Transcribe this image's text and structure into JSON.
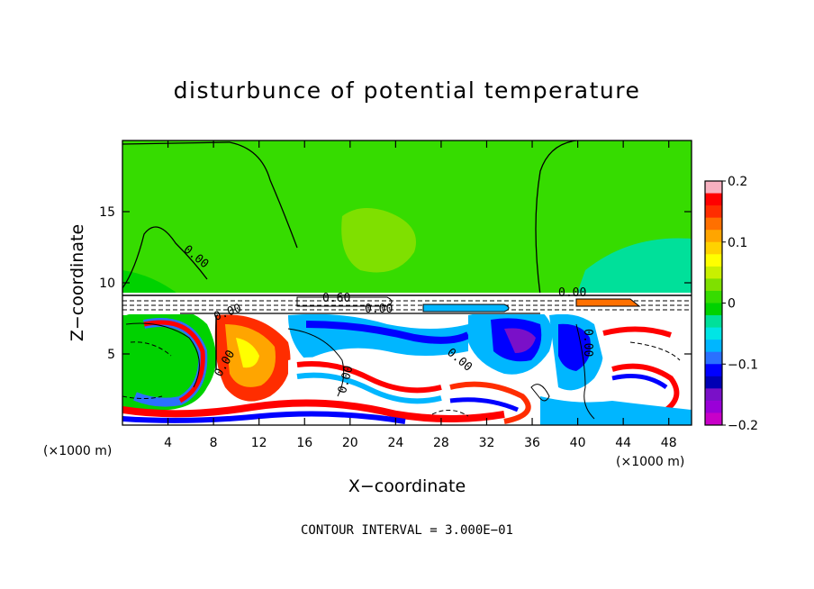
{
  "chart_data": {
    "type": "heatmap",
    "title": "disturbunce of potential temperature",
    "xlabel": "X−coordinate",
    "ylabel": "Z−coordinate",
    "xunit": "(×1000 m)",
    "xunit_right": "(×1000 m)",
    "xticks": [
      "4",
      "8",
      "12",
      "16",
      "20",
      "24",
      "28",
      "32",
      "36",
      "40",
      "44",
      "48"
    ],
    "xtick_values": [
      4,
      8,
      12,
      16,
      20,
      24,
      28,
      32,
      36,
      40,
      44,
      48
    ],
    "xlim": [
      0,
      50
    ],
    "yticks": [
      "5",
      "10",
      "15"
    ],
    "ytick_values": [
      5,
      10,
      15
    ],
    "ylim": [
      0,
      20
    ],
    "colorbar": {
      "ticks": [
        "0.2",
        "0.1",
        "0",
        "−0.1",
        "−0.2"
      ],
      "tick_values": [
        0.2,
        0.1,
        0,
        -0.1,
        -0.2
      ],
      "range": [
        -0.2,
        0.2
      ],
      "colors": [
        "#f7b1c0",
        "#ff0000",
        "#ff2d00",
        "#ff7000",
        "#ffa500",
        "#ffd200",
        "#ffff00",
        "#c9f000",
        "#7fe000",
        "#36dc00",
        "#00d200",
        "#00e09a",
        "#00e5e5",
        "#00b6ff",
        "#2a70ff",
        "#0000ff",
        "#0000b4",
        "#7a10c8",
        "#9a00d8",
        "#c800c8"
      ]
    },
    "contour_labels": [
      "0.60",
      "0.00",
      "0.00",
      "0.00",
      "0.00",
      "0.00",
      "0.00",
      "0.00",
      "0.00"
    ],
    "annotation": "CONTOUR INTERVAL = 3.000E−01"
  }
}
